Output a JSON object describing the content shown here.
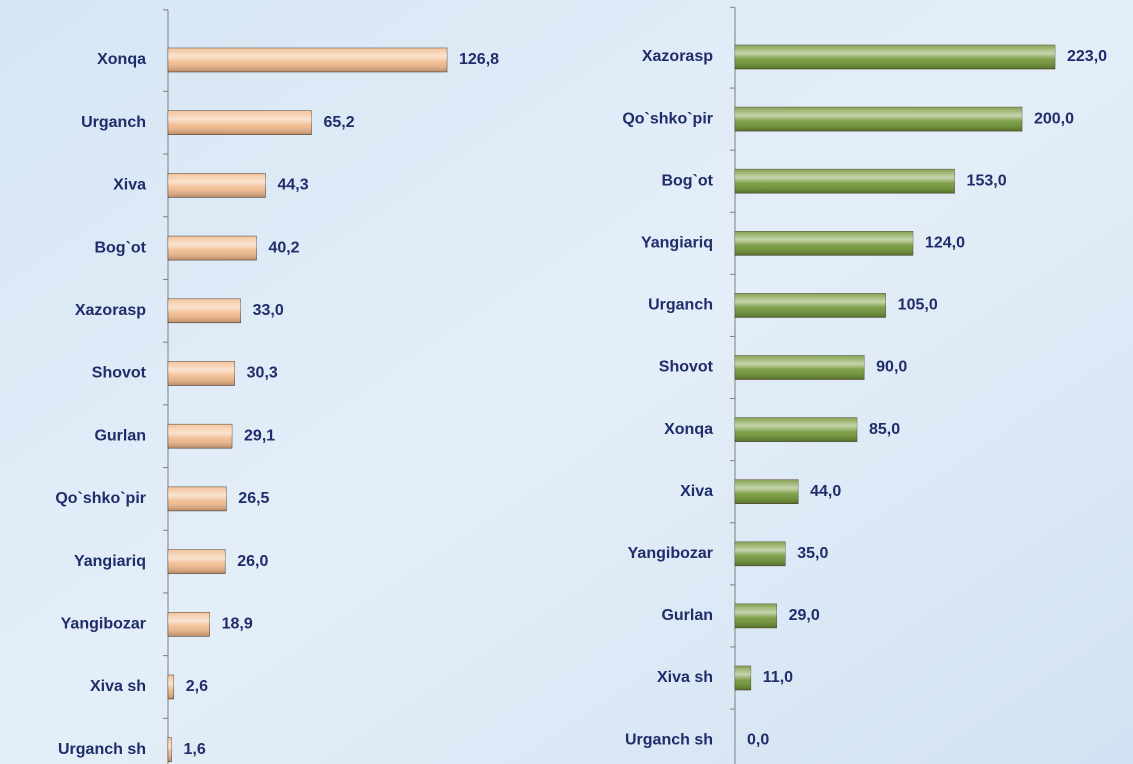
{
  "chart_data": [
    {
      "type": "barh",
      "color": "#f2b98a",
      "categories": [
        "Xonqa",
        "Urganch",
        "Xiva",
        "Bog`ot",
        "Xazorasp",
        "Shovot",
        "Gurlan",
        "Qo`shko`pir",
        "Yangiariq",
        "Yangibozar",
        "Xiva sh",
        "Urganch sh"
      ],
      "values": [
        126.8,
        65.2,
        44.3,
        40.2,
        33.0,
        30.3,
        29.1,
        26.5,
        26.0,
        18.9,
        2.6,
        1.6
      ],
      "value_labels": [
        "126,8",
        "65,2",
        "44,3",
        "40,2",
        "33,0",
        "30,3",
        "29,1",
        "26,5",
        "26,0",
        "18,9",
        "2,6",
        "1,6"
      ]
    },
    {
      "type": "barh",
      "color": "#6f9433",
      "categories": [
        "Xazorasp",
        "Qo`shko`pir",
        "Bog`ot",
        "Yangiariq",
        "Urganch",
        "Shovot",
        "Xonqa",
        "Xiva",
        "Yangibozar",
        "Gurlan",
        "Xiva sh",
        "Urganch sh"
      ],
      "values": [
        223.0,
        200.0,
        153.0,
        124.0,
        105.0,
        90.0,
        85.0,
        44.0,
        35.0,
        29.0,
        11.0,
        0.0
      ],
      "value_labels": [
        "223,0",
        "200,0",
        "153,0",
        "124,0",
        "105,0",
        "90,0",
        "85,0",
        "44,0",
        "35,0",
        "29,0",
        "11,0",
        "0,0"
      ]
    }
  ]
}
